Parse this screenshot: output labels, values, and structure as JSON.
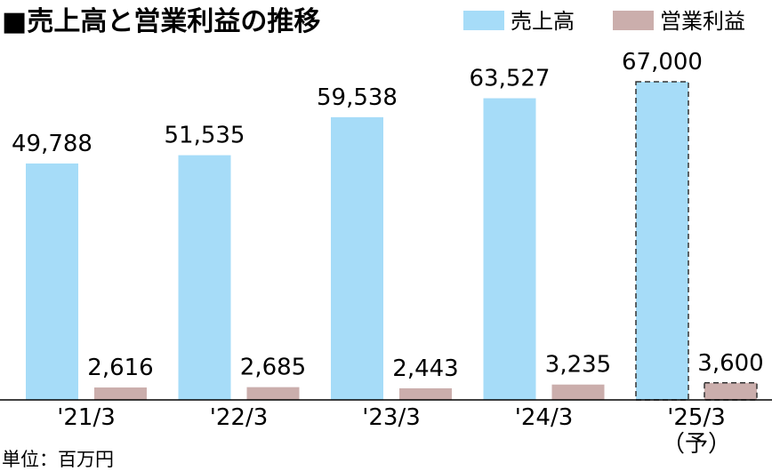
{
  "title": "■売上高と営業利益の推移",
  "unit_label": "単位：百万円",
  "colors": {
    "sales": "#a6dcf8",
    "operating_profit": "#cbaeac",
    "axis": "#000000",
    "forecast_border": "#333333"
  },
  "chart_data": {
    "type": "bar",
    "title": "■売上高と営業利益の推移",
    "categories": [
      "'21/3",
      "'22/3",
      "'23/3",
      "'24/3",
      "'25/3"
    ],
    "category_sublabels": [
      "",
      "",
      "",
      "",
      "（予）"
    ],
    "forecast": [
      false,
      false,
      false,
      false,
      true
    ],
    "series": [
      {
        "name": "売上高",
        "values": [
          49788,
          51535,
          59538,
          63527,
          67000
        ],
        "labels": [
          "49,788",
          "51,535",
          "59,538",
          "63,527",
          "67,000"
        ]
      },
      {
        "name": "営業利益",
        "values": [
          2616,
          2685,
          2443,
          3235,
          3600
        ],
        "labels": [
          "2,616",
          "2,685",
          "2,443",
          "3,235",
          "3,600"
        ]
      }
    ],
    "legend_position": "top-right",
    "grid": false,
    "ylim": [
      0,
      67000
    ],
    "unit": "単位：百万円"
  }
}
